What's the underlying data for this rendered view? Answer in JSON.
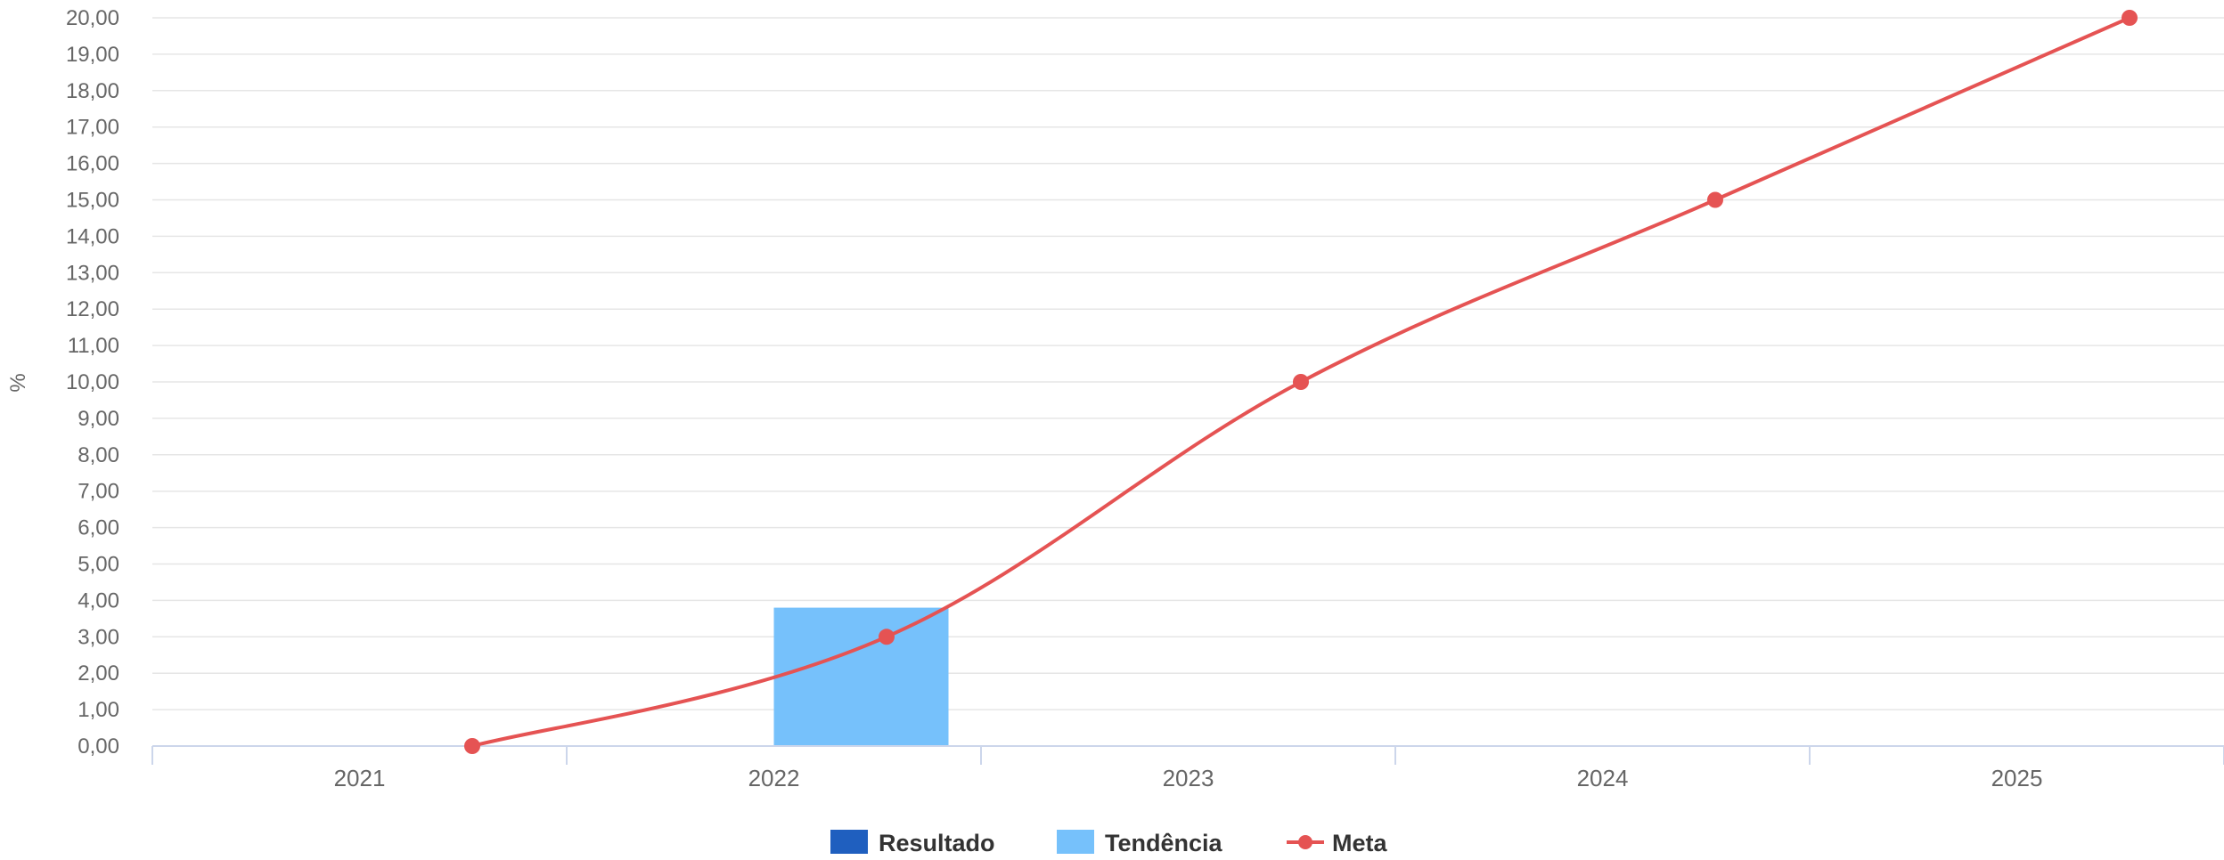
{
  "chart_data": {
    "type": "bar",
    "categories": [
      "2021",
      "2022",
      "2023",
      "2024",
      "2025"
    ],
    "ylabel": "%",
    "xlabel": "",
    "ylim": [
      0,
      20
    ],
    "ytick_step": 1,
    "ytick_decimals": 2,
    "decimal_separator": ",",
    "grid": true,
    "legend_position": "bottom-center",
    "series": [
      {
        "name": "Resultado",
        "type": "bar",
        "color": "#1f5fbf",
        "values": [
          null,
          null,
          null,
          null,
          null
        ]
      },
      {
        "name": "Tendência",
        "type": "bar",
        "color": "#76c1fb",
        "values": [
          null,
          3.8,
          null,
          null,
          null
        ]
      },
      {
        "name": "Meta",
        "type": "line",
        "smooth": true,
        "color": "#e55353",
        "values": [
          0,
          3,
          10,
          15,
          20
        ]
      }
    ]
  }
}
